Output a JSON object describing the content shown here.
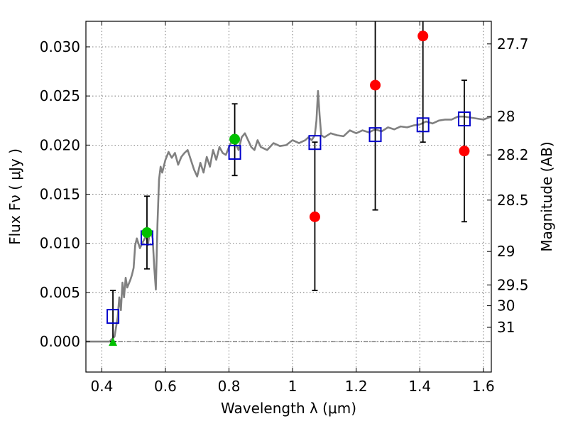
{
  "chart_data": {
    "type": "scatter",
    "xlabel": "Wavelength  λ (μm)",
    "ylabel": "Flux  Fν  ( μJy )",
    "ylabel_right": "Magnitude (AB)",
    "xlim": [
      0.35,
      1.625
    ],
    "ylim": [
      -0.0031,
      0.0326
    ],
    "grid": true,
    "x_ticks": [
      0.4,
      0.6,
      0.8,
      1.0,
      1.2,
      1.4,
      1.6
    ],
    "x_tick_labels": [
      "0.4",
      "0.6",
      "0.8",
      "1",
      "1.2",
      "1.4",
      "1.6"
    ],
    "y_ticks": [
      0.0,
      0.005,
      0.01,
      0.015,
      0.02,
      0.025,
      0.03
    ],
    "y_tick_labels": [
      "0.000",
      "0.005",
      "0.010",
      "0.015",
      "0.020",
      "0.025",
      "0.030"
    ],
    "right_ticks": [
      {
        "label": "27.7",
        "flux": 0.0303
      },
      {
        "label": "28",
        "flux": 0.0229
      },
      {
        "label": "28.2",
        "flux": 0.019
      },
      {
        "label": "28.5",
        "flux": 0.0144
      },
      {
        "label": "29",
        "flux": 0.00917
      },
      {
        "label": "29.5",
        "flux": 0.00577
      },
      {
        "label": "30",
        "flux": 0.00365
      },
      {
        "label": "31",
        "flux": 0.00145
      }
    ],
    "colors": {
      "model": "#808080",
      "observed": "#ff0000",
      "observed_alt": "#00c000",
      "synthetic": "#0000cc",
      "errorbar": "#000000",
      "grid": "#555555"
    },
    "series": [
      {
        "marker": "line",
        "x": [
          0.35,
          0.42,
          0.425,
          0.43,
          0.44,
          0.45,
          0.455,
          0.46,
          0.465,
          0.47,
          0.475,
          0.48,
          0.49,
          0.495,
          0.5,
          0.505,
          0.51,
          0.52,
          0.53,
          0.54,
          0.545,
          0.55,
          0.555,
          0.56,
          0.565,
          0.57,
          0.575,
          0.58,
          0.585,
          0.59,
          0.6,
          0.61,
          0.62,
          0.63,
          0.64,
          0.65,
          0.66,
          0.67,
          0.68,
          0.69,
          0.7,
          0.71,
          0.72,
          0.73,
          0.74,
          0.75,
          0.76,
          0.77,
          0.78,
          0.79,
          0.8,
          0.81,
          0.82,
          0.83,
          0.84,
          0.85,
          0.86,
          0.87,
          0.88,
          0.89,
          0.9,
          0.92,
          0.94,
          0.96,
          0.98,
          1.0,
          1.02,
          1.04,
          1.05,
          1.06,
          1.07,
          1.075,
          1.08,
          1.085,
          1.09,
          1.1,
          1.12,
          1.14,
          1.16,
          1.18,
          1.2,
          1.22,
          1.24,
          1.26,
          1.28,
          1.3,
          1.32,
          1.34,
          1.36,
          1.38,
          1.4,
          1.42,
          1.44,
          1.46,
          1.48,
          1.5,
          1.52,
          1.54,
          1.56,
          1.58,
          1.6,
          1.625
        ],
        "y": [
          0.0,
          0.0,
          0.0,
          0.0002,
          0.0005,
          0.0025,
          0.0045,
          0.0032,
          0.006,
          0.0045,
          0.0065,
          0.0055,
          0.0063,
          0.0068,
          0.0075,
          0.0098,
          0.0105,
          0.0095,
          0.0102,
          0.0108,
          0.0098,
          0.011,
          0.0112,
          0.0105,
          0.0075,
          0.0053,
          0.012,
          0.0165,
          0.0178,
          0.0172,
          0.0185,
          0.0193,
          0.0187,
          0.0192,
          0.018,
          0.0188,
          0.0192,
          0.0195,
          0.0185,
          0.0175,
          0.0168,
          0.0182,
          0.0172,
          0.0188,
          0.0178,
          0.0195,
          0.0185,
          0.0198,
          0.0192,
          0.019,
          0.0198,
          0.0205,
          0.0202,
          0.0195,
          0.0208,
          0.0212,
          0.0205,
          0.0198,
          0.0195,
          0.0205,
          0.0198,
          0.0195,
          0.0202,
          0.0199,
          0.02,
          0.0205,
          0.0202,
          0.0205,
          0.0208,
          0.0205,
          0.021,
          0.0225,
          0.0255,
          0.023,
          0.021,
          0.0208,
          0.0212,
          0.021,
          0.0209,
          0.0215,
          0.0212,
          0.0215,
          0.0213,
          0.0216,
          0.0214,
          0.0218,
          0.0216,
          0.0219,
          0.0218,
          0.022,
          0.0221,
          0.0224,
          0.0222,
          0.0225,
          0.0226,
          0.0226,
          0.0229,
          0.0229,
          0.0228,
          0.0227,
          0.0226,
          0.0229
        ]
      },
      {
        "marker": "square",
        "x": [
          0.435,
          0.542,
          0.818,
          1.07,
          1.26,
          1.41,
          1.54
        ],
        "y": [
          0.0026,
          0.0106,
          0.0193,
          0.0203,
          0.0211,
          0.0221,
          0.0227
        ]
      },
      {
        "marker": "errorbar",
        "x": [
          0.435,
          0.542,
          0.818,
          1.07,
          1.26,
          1.41,
          1.54
        ],
        "y_low": [
          0.0,
          0.0074,
          0.0169,
          0.0052,
          0.0134,
          0.0203,
          0.0122
        ],
        "y_high": [
          0.0052,
          0.0148,
          0.0242,
          0.0203,
          0.033,
          0.033,
          0.0266
        ]
      },
      {
        "marker": "circle",
        "x": [
          0.542,
          0.818
        ],
        "y": [
          0.0111,
          0.0206
        ]
      },
      {
        "marker": "circle",
        "x": [
          1.07,
          1.26,
          1.41,
          1.54
        ],
        "y": [
          0.0127,
          0.0261,
          0.0311,
          0.0194
        ]
      },
      {
        "marker": "triangle",
        "x": [
          0.435
        ],
        "y": [
          0.0
        ]
      }
    ]
  }
}
